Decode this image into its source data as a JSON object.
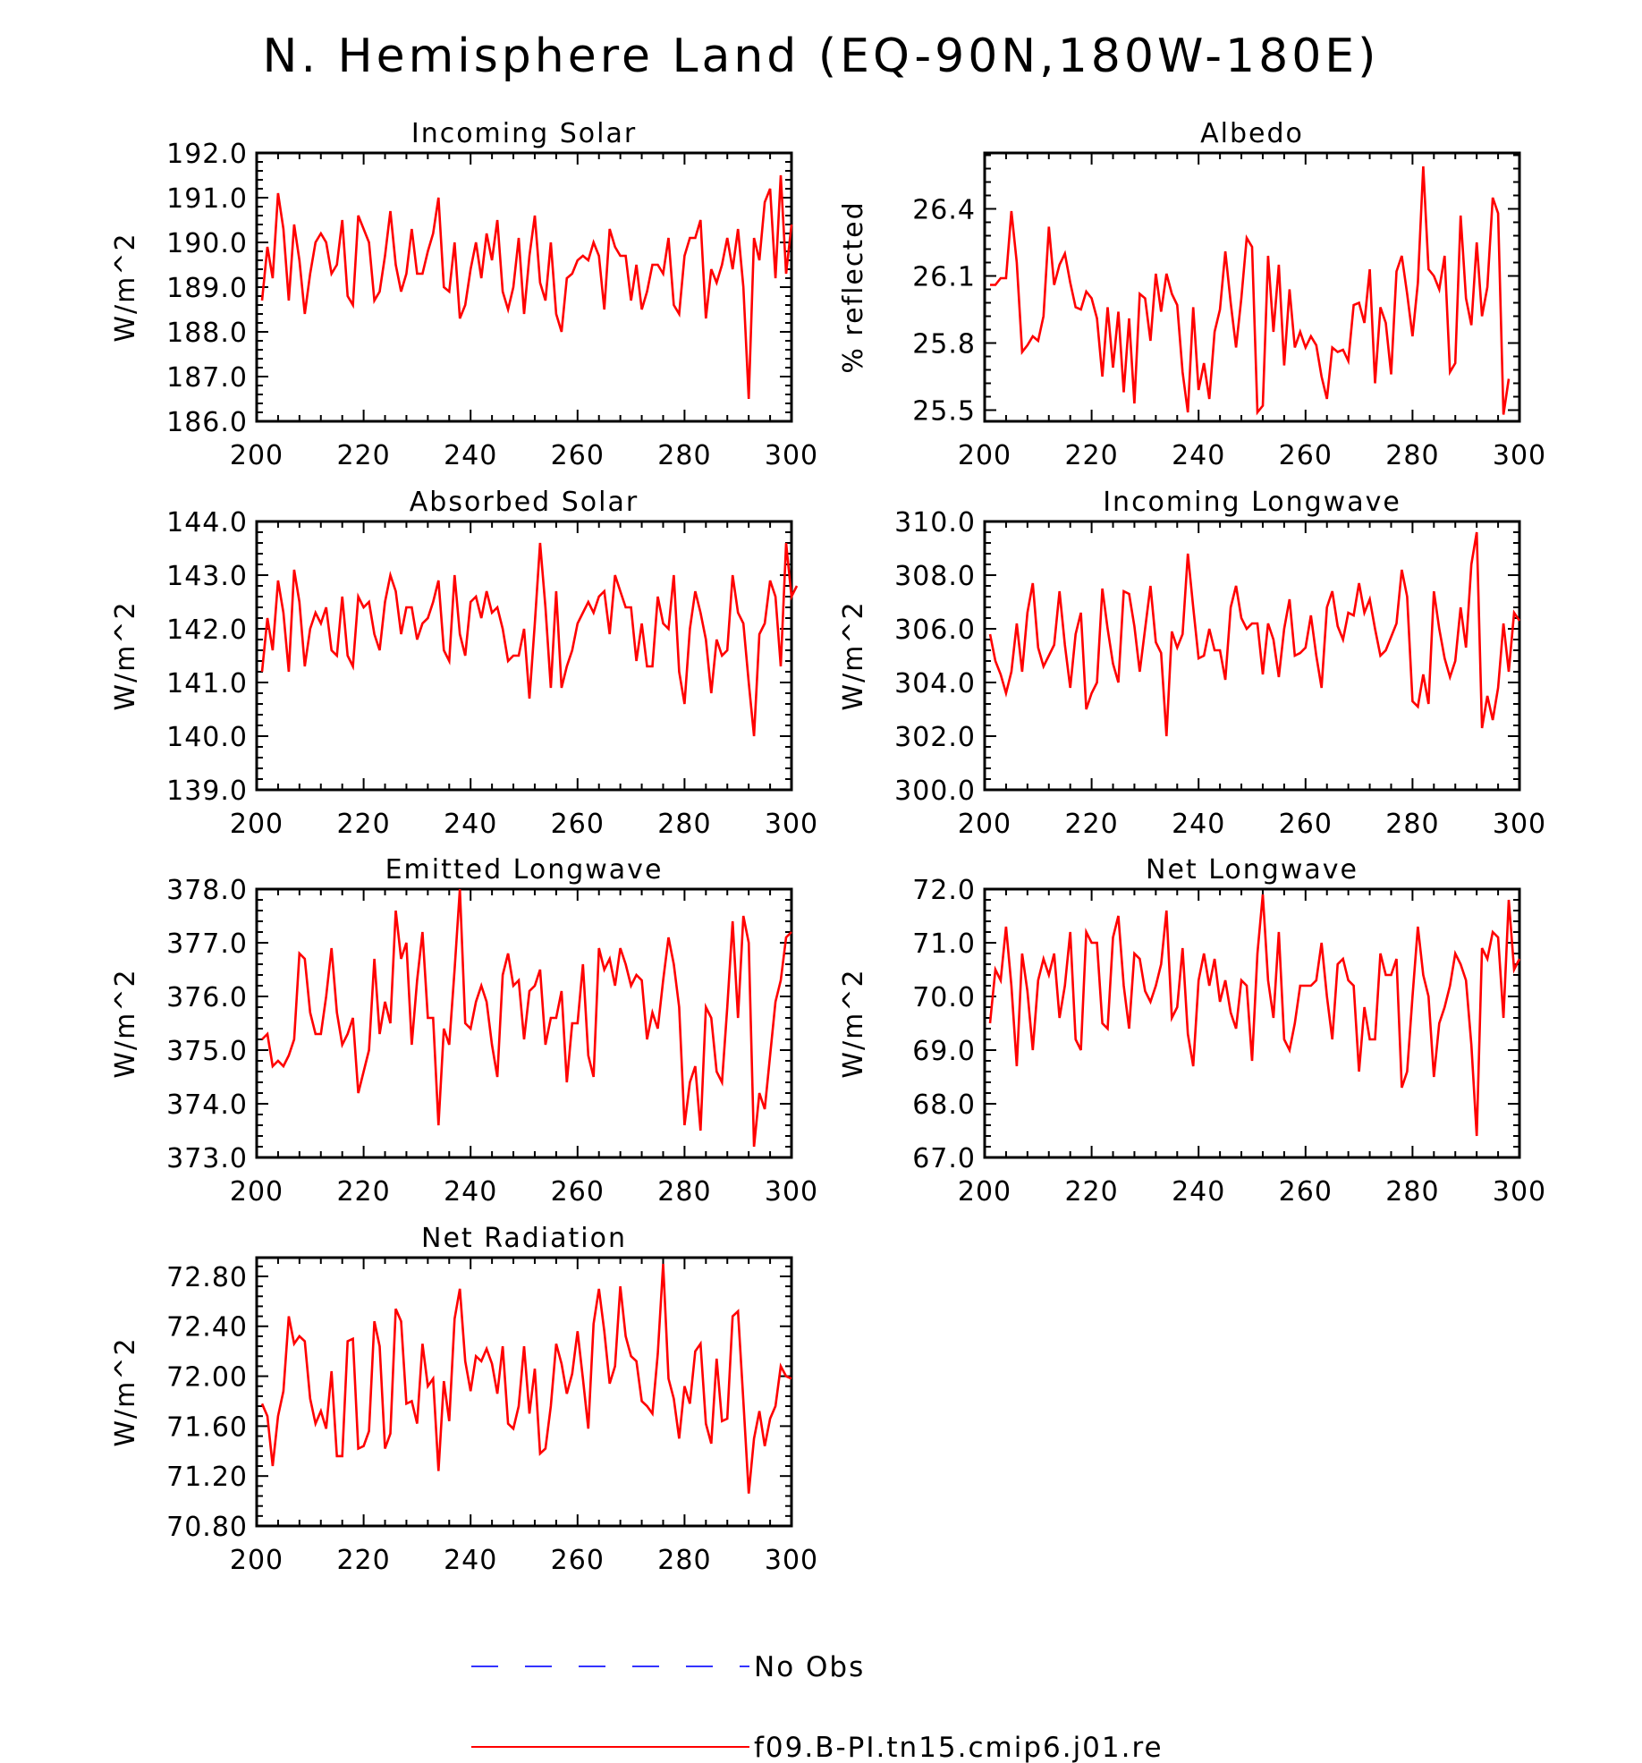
{
  "title": "N. Hemisphere Land (EQ-90N,180W-180E)",
  "legend": {
    "items": [
      {
        "label": "No Obs",
        "color": "#3333ff",
        "style": "dashed"
      },
      {
        "label": "f09.B-PI.tn15.cmip6.j01.re",
        "color": "#ff0000",
        "style": "solid"
      }
    ]
  },
  "chart_data": [
    {
      "type": "line",
      "title": "Incoming Solar",
      "ylabel": "W/m^2",
      "xlim": [
        200,
        300
      ],
      "ylim": [
        186.0,
        192.0
      ],
      "xticks": [
        "200",
        "220",
        "240",
        "260",
        "280",
        "300"
      ],
      "yticks": [
        "186.0",
        "187.0",
        "188.0",
        "189.0",
        "190.0",
        "191.0",
        "192.0"
      ],
      "series": [
        {
          "color": "#ff0000",
          "x_start": 201,
          "x_step": 1,
          "values": [
            188.7,
            189.9,
            189.2,
            191.1,
            190.3,
            188.7,
            190.4,
            189.6,
            188.4,
            189.3,
            190.0,
            190.2,
            190.0,
            189.3,
            189.5,
            190.5,
            188.8,
            188.6,
            190.6,
            190.3,
            190.0,
            188.7,
            188.9,
            189.7,
            190.7,
            189.5,
            188.9,
            189.3,
            190.3,
            189.3,
            189.3,
            189.8,
            190.2,
            191.0,
            189.0,
            188.9,
            190.0,
            188.3,
            188.6,
            189.4,
            190.0,
            189.2,
            190.2,
            189.6,
            190.5,
            188.9,
            188.5,
            189.0,
            190.1,
            188.4,
            189.7,
            190.6,
            189.1,
            188.7,
            190.0,
            188.4,
            188.0,
            189.2,
            189.3,
            189.6,
            189.7,
            189.6,
            190.0,
            189.7,
            188.5,
            190.3,
            189.9,
            189.7,
            189.7,
            188.7,
            189.5,
            188.5,
            188.9,
            189.5,
            189.5,
            189.3,
            190.1,
            188.6,
            188.4,
            189.7,
            190.1,
            190.1,
            190.5,
            188.3,
            189.4,
            189.1,
            189.5,
            190.1,
            189.4,
            190.3,
            189.0,
            186.5,
            190.1,
            189.6,
            190.9,
            191.2,
            189.2,
            191.5,
            189.3,
            190.4
          ]
        }
      ]
    },
    {
      "type": "line",
      "title": "Albedo",
      "ylabel": "% reflected",
      "xlim": [
        200,
        300
      ],
      "ylim": [
        25.45,
        26.65
      ],
      "xticks": [
        "200",
        "220",
        "240",
        "260",
        "280",
        "300"
      ],
      "yticks": [
        "25.5",
        "25.8",
        "26.1",
        "26.4"
      ],
      "series": [
        {
          "color": "#ff0000",
          "x_start": 201,
          "x_step": 1,
          "values": [
            26.06,
            26.06,
            26.09,
            26.09,
            26.39,
            26.16,
            25.76,
            25.79,
            25.83,
            25.81,
            25.92,
            26.32,
            26.06,
            26.15,
            26.2,
            26.07,
            25.96,
            25.95,
            26.03,
            26.0,
            25.91,
            25.65,
            25.96,
            25.69,
            25.94,
            25.58,
            25.91,
            25.53,
            26.02,
            26.0,
            25.81,
            26.11,
            25.94,
            26.11,
            26.02,
            25.97,
            25.67,
            25.49,
            25.96,
            25.59,
            25.71,
            25.55,
            25.85,
            25.95,
            26.21,
            25.98,
            25.78,
            26.0,
            26.27,
            26.23,
            25.49,
            25.52,
            26.19,
            25.85,
            26.15,
            25.7,
            26.04,
            25.78,
            25.85,
            25.78,
            25.83,
            25.79,
            25.65,
            25.55,
            25.78,
            25.76,
            25.77,
            25.72,
            25.97,
            25.98,
            25.89,
            26.13,
            25.62,
            25.96,
            25.89,
            25.66,
            26.12,
            26.19,
            26.02,
            25.83,
            26.07,
            26.59,
            26.13,
            26.1,
            26.04,
            26.19,
            25.67,
            25.71,
            26.37,
            26.0,
            25.88,
            26.25,
            25.92,
            26.05,
            26.45,
            26.38,
            25.48,
            25.64
          ]
        }
      ]
    },
    {
      "type": "line",
      "title": "Absorbed Solar",
      "ylabel": "W/m^2",
      "xlim": [
        200,
        300
      ],
      "ylim": [
        139.0,
        144.0
      ],
      "xticks": [
        "200",
        "220",
        "240",
        "260",
        "280",
        "300"
      ],
      "yticks": [
        "139.0",
        "140.0",
        "141.0",
        "142.0",
        "143.0",
        "144.0"
      ],
      "series": [
        {
          "color": "#ff0000",
          "x_start": 201,
          "x_step": 1,
          "values": [
            141.2,
            142.2,
            141.6,
            142.9,
            142.3,
            141.2,
            143.1,
            142.5,
            141.3,
            142.0,
            142.3,
            142.1,
            142.4,
            141.6,
            141.5,
            142.6,
            141.5,
            141.3,
            142.6,
            142.4,
            142.5,
            141.9,
            141.6,
            142.5,
            143.0,
            142.7,
            141.9,
            142.4,
            142.4,
            141.8,
            142.1,
            142.2,
            142.5,
            142.9,
            141.6,
            141.4,
            143.0,
            141.9,
            141.5,
            142.5,
            142.6,
            142.2,
            142.7,
            142.3,
            142.4,
            142.0,
            141.4,
            141.5,
            141.5,
            142.0,
            140.7,
            142.1,
            143.6,
            142.4,
            140.9,
            142.7,
            140.9,
            141.3,
            141.6,
            142.1,
            142.3,
            142.5,
            142.3,
            142.6,
            142.7,
            141.9,
            143.0,
            142.7,
            142.4,
            142.4,
            141.4,
            142.1,
            141.3,
            141.3,
            142.6,
            142.1,
            142.0,
            143.0,
            141.2,
            140.6,
            142.0,
            142.7,
            142.3,
            141.8,
            140.8,
            141.8,
            141.5,
            141.6,
            143.0,
            142.3,
            142.1,
            141.0,
            140.0,
            141.9,
            142.1,
            142.9,
            142.6,
            141.3,
            143.6,
            142.6,
            142.8
          ]
        }
      ]
    },
    {
      "type": "line",
      "title": "Incoming Longwave",
      "ylabel": "W/m^2",
      "xlim": [
        200,
        300
      ],
      "ylim": [
        300.0,
        310.0
      ],
      "xticks": [
        "200",
        "220",
        "240",
        "260",
        "280",
        "300"
      ],
      "yticks": [
        "300.0",
        "302.0",
        "304.0",
        "306.0",
        "308.0",
        "310.0"
      ],
      "series": [
        {
          "color": "#ff0000",
          "x_start": 201,
          "x_step": 1,
          "values": [
            305.8,
            304.8,
            304.3,
            303.6,
            304.4,
            306.2,
            304.4,
            306.6,
            307.7,
            305.3,
            304.6,
            305.0,
            305.4,
            307.4,
            305.4,
            303.8,
            305.8,
            306.6,
            303.0,
            303.6,
            304.0,
            307.5,
            306.0,
            304.7,
            304.0,
            307.4,
            307.3,
            306.1,
            304.4,
            306.0,
            307.6,
            305.5,
            305.1,
            302.0,
            305.9,
            305.3,
            305.8,
            308.8,
            306.8,
            304.9,
            305.0,
            306.0,
            305.2,
            305.2,
            304.1,
            306.8,
            307.6,
            306.4,
            306.0,
            306.2,
            306.2,
            304.3,
            306.2,
            305.6,
            304.2,
            306.0,
            307.1,
            305.0,
            305.1,
            305.3,
            306.5,
            305.0,
            303.8,
            306.8,
            307.4,
            306.1,
            305.6,
            306.6,
            306.5,
            307.7,
            306.6,
            307.1,
            306.0,
            305.0,
            305.2,
            305.7,
            306.2,
            308.2,
            307.2,
            303.3,
            303.1,
            304.3,
            303.2,
            307.4,
            306.0,
            304.9,
            304.2,
            304.8,
            306.8,
            305.3,
            308.4,
            309.6,
            302.3,
            303.5,
            302.6,
            303.8,
            306.2,
            304.4,
            306.6,
            306.3
          ]
        }
      ]
    },
    {
      "type": "line",
      "title": "Emitted Longwave",
      "ylabel": "W/m^2",
      "xlim": [
        200,
        300
      ],
      "ylim": [
        373.0,
        378.0
      ],
      "xticks": [
        "200",
        "220",
        "240",
        "260",
        "280",
        "300"
      ],
      "yticks": [
        "373.0",
        "374.0",
        "375.0",
        "376.0",
        "377.0",
        "378.0"
      ],
      "series": [
        {
          "color": "#ff0000",
          "x_start": 201,
          "x_step": 1,
          "values": [
            375.2,
            375.3,
            374.7,
            374.8,
            374.7,
            374.9,
            375.2,
            376.8,
            376.7,
            375.7,
            375.3,
            375.3,
            376.0,
            376.9,
            375.7,
            375.1,
            375.3,
            375.6,
            374.2,
            374.6,
            375.0,
            376.7,
            375.3,
            375.9,
            375.5,
            377.6,
            376.7,
            377.0,
            375.1,
            376.3,
            377.2,
            375.6,
            375.6,
            373.6,
            375.4,
            375.1,
            376.5,
            378.0,
            375.5,
            375.4,
            375.9,
            376.2,
            375.9,
            375.1,
            374.5,
            376.4,
            376.8,
            376.2,
            376.3,
            375.2,
            376.1,
            376.2,
            376.5,
            375.1,
            375.6,
            375.6,
            376.1,
            374.4,
            375.5,
            375.5,
            376.6,
            374.9,
            374.5,
            376.9,
            376.5,
            376.7,
            376.2,
            376.9,
            376.6,
            376.2,
            376.4,
            376.3,
            375.2,
            375.7,
            375.4,
            376.3,
            377.1,
            376.6,
            375.8,
            373.6,
            374.4,
            374.7,
            373.5,
            375.8,
            375.6,
            374.6,
            374.4,
            375.8,
            377.4,
            375.6,
            377.5,
            377.0,
            373.2,
            374.2,
            373.9,
            374.9,
            375.9,
            376.3,
            377.1,
            377.2
          ]
        }
      ]
    },
    {
      "type": "line",
      "title": "Net Longwave",
      "ylabel": "W/m^2",
      "xlim": [
        200,
        300
      ],
      "ylim": [
        67.0,
        72.0
      ],
      "xticks": [
        "200",
        "220",
        "240",
        "260",
        "280",
        "300"
      ],
      "yticks": [
        "67.0",
        "68.0",
        "69.0",
        "70.0",
        "71.0",
        "72.0"
      ],
      "series": [
        {
          "color": "#ff0000",
          "x_start": 201,
          "x_step": 1,
          "values": [
            69.5,
            70.5,
            70.3,
            71.3,
            70.2,
            68.7,
            70.8,
            70.1,
            69.0,
            70.3,
            70.7,
            70.4,
            70.8,
            69.6,
            70.2,
            71.2,
            69.2,
            69.0,
            71.2,
            71.0,
            71.0,
            69.5,
            69.4,
            71.1,
            71.5,
            70.2,
            69.4,
            70.8,
            70.7,
            70.1,
            69.9,
            70.2,
            70.6,
            71.6,
            69.6,
            69.8,
            70.9,
            69.3,
            68.7,
            70.3,
            70.8,
            70.2,
            70.7,
            69.9,
            70.3,
            69.7,
            69.4,
            70.3,
            70.2,
            68.8,
            70.8,
            71.9,
            70.3,
            69.6,
            71.2,
            69.2,
            69.0,
            69.5,
            70.2,
            70.2,
            70.2,
            70.3,
            71.0,
            70.0,
            69.2,
            70.6,
            70.7,
            70.3,
            70.2,
            68.6,
            69.8,
            69.2,
            69.2,
            70.8,
            70.4,
            70.4,
            70.7,
            68.3,
            68.6,
            70.0,
            71.3,
            70.4,
            70.0,
            68.5,
            69.5,
            69.8,
            70.2,
            70.8,
            70.6,
            70.3,
            69.1,
            67.4,
            70.9,
            70.7,
            71.2,
            71.1,
            69.6,
            71.8,
            70.5,
            70.7
          ]
        }
      ]
    },
    {
      "type": "line",
      "title": "Net Radiation",
      "ylabel": "W/m^2",
      "xlim": [
        200,
        300
      ],
      "ylim": [
        70.8,
        72.95
      ],
      "xticks": [
        "200",
        "220",
        "240",
        "260",
        "280",
        "300"
      ],
      "yticks": [
        "70.80",
        "71.20",
        "71.60",
        "72.00",
        "72.40",
        "72.80"
      ],
      "series": [
        {
          "color": "#ff0000",
          "x_start": 201,
          "x_step": 1,
          "values": [
            71.78,
            71.68,
            71.28,
            71.68,
            71.88,
            72.48,
            72.26,
            72.32,
            72.28,
            71.82,
            71.62,
            71.72,
            71.58,
            72.04,
            71.36,
            71.36,
            72.28,
            72.3,
            71.42,
            71.44,
            71.56,
            72.44,
            72.24,
            71.42,
            71.54,
            72.54,
            72.44,
            71.78,
            71.8,
            71.62,
            72.26,
            71.92,
            71.98,
            71.24,
            71.96,
            71.64,
            72.46,
            72.7,
            72.12,
            71.88,
            72.16,
            72.12,
            72.22,
            72.1,
            71.86,
            72.24,
            71.62,
            71.58,
            71.76,
            72.24,
            71.7,
            72.06,
            71.38,
            71.42,
            71.76,
            72.26,
            72.1,
            71.86,
            72.02,
            72.36,
            71.98,
            71.58,
            72.42,
            72.7,
            72.36,
            71.94,
            72.08,
            72.72,
            72.32,
            72.16,
            72.12,
            71.8,
            71.76,
            71.7,
            72.18,
            72.9,
            71.98,
            71.82,
            71.5,
            71.92,
            71.78,
            72.2,
            72.26,
            71.62,
            71.46,
            72.14,
            71.64,
            71.66,
            72.48,
            72.52,
            71.8,
            71.06,
            71.5,
            71.72,
            71.44,
            71.66,
            71.76,
            72.08,
            72.0,
            71.98
          ]
        }
      ]
    }
  ]
}
